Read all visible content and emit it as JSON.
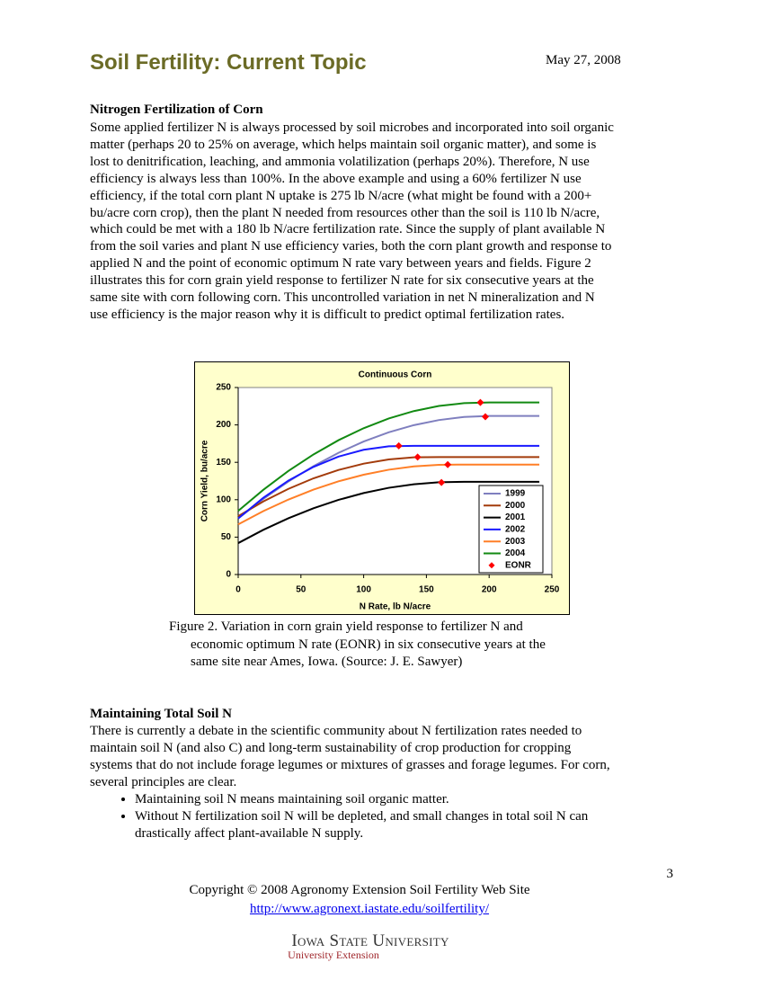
{
  "header": {
    "title": "Soil Fertility:  Current Topic",
    "date": "May 27, 2008"
  },
  "sections": [
    {
      "heading": "Nitrogen Fertilization of Corn",
      "lines": [
        "Some applied fertilizer N is always processed by soil microbes and incorporated into soil organic",
        "matter (perhaps 20 to 25% on average, which helps maintain soil organic matter), and some is",
        "lost to denitrification, leaching, and ammonia volatilization (perhaps 20%). Therefore, N use",
        "efficiency is always less than 100%. In the above example and using a 60% fertilizer N use",
        "efficiency, if the total corn plant N uptake is 275 lb N/acre (what might be found with a 200+",
        "bu/acre corn crop), then the plant N needed from resources other than the soil is 110 lb N/acre,",
        "which could be met with a 180 lb N/acre fertilization rate. Since the supply of plant available N",
        "from the soil varies and plant N use efficiency varies, both the corn plant growth and response to",
        "applied N and the point of economic optimum N rate vary between years and fields. Figure 2",
        "illustrates this for corn grain yield response to fertilizer N rate for six consecutive years at the",
        "same site with corn following corn. This uncontrolled variation in net N mineralization and N",
        "use efficiency is the major reason why it is difficult to predict optimal fertilization rates."
      ]
    },
    {
      "heading": "Maintaining Total Soil N",
      "lines": [
        "There is currently a debate in the scientific community about N fertilization rates needed to",
        "maintain soil N (and also C) and long-term sustainability of crop production for cropping",
        "systems that do not include forage legumes or mixtures of grasses and forage legumes. For corn,",
        "several principles are clear."
      ],
      "bullets": [
        [
          "Maintaining soil N means maintaining soil organic matter."
        ],
        [
          "Without N fertilization soil N will be depleted, and small changes in total soil N can",
          "drastically affect plant-available N supply."
        ]
      ]
    }
  ],
  "chart_data": {
    "type": "line",
    "title": "Continuous Corn",
    "x_label": "N Rate, lb N/acre",
    "y_label": "Corn Yield, bu/acre",
    "x": [
      0,
      20,
      40,
      60,
      80,
      100,
      120,
      140,
      160,
      180,
      200,
      220,
      240
    ],
    "xlim": [
      0,
      250
    ],
    "ylim": [
      0,
      250
    ],
    "xticks": [
      0,
      50,
      100,
      150,
      200,
      250
    ],
    "yticks": [
      0,
      50,
      100,
      150,
      200,
      250
    ],
    "background": "#ffffcc",
    "legend": "lower-right",
    "series": [
      {
        "name": "1999",
        "color": "#7f7fbf",
        "values": [
          75,
          101.0,
          124.3,
          144.9,
          162.7,
          177.8,
          190.1,
          199.7,
          206.5,
          210.6,
          212,
          212,
          212
        ]
      },
      {
        "name": "2000",
        "color": "#a33b0b",
        "values": [
          78,
          97.7,
          114.5,
          128.6,
          139.8,
          148.2,
          153.8,
          156.7,
          157,
          157,
          157,
          157,
          157
        ]
      },
      {
        "name": "2001",
        "color": "#000000",
        "values": [
          42,
          59.7,
          75.2,
          88.6,
          99.8,
          108.9,
          115.9,
          120.7,
          123.4,
          124,
          124,
          124,
          124
        ]
      },
      {
        "name": "2002",
        "color": "#1a1aff",
        "values": [
          75,
          102.5,
          125.5,
          143.9,
          157.7,
          166.8,
          171.4,
          172,
          172,
          172,
          172,
          172,
          172
        ]
      },
      {
        "name": "2003",
        "color": "#ff7f27",
        "values": [
          67,
          84.7,
          100.2,
          113.5,
          124.6,
          133.4,
          140.1,
          144.5,
          146.7,
          147,
          147,
          147,
          147
        ]
      },
      {
        "name": "2004",
        "color": "#128a12",
        "values": [
          85,
          113.2,
          138.4,
          160.5,
          179.6,
          195.6,
          208.6,
          218.5,
          225.3,
          229.1,
          230,
          230,
          230
        ]
      },
      {
        "name": "EONR",
        "color": "#ff0000",
        "marker": "diamond",
        "x": [
          197,
          143,
          162,
          128,
          167,
          193
        ],
        "values": [
          211,
          157,
          123,
          172,
          147,
          230
        ]
      }
    ]
  },
  "caption": {
    "lines": [
      "Figure 2. Variation in corn grain yield response to fertilizer N and",
      "economic optimum N rate (EONR) in six consecutive years at the",
      "same site near Ames, Iowa. (Source: J. E. Sawyer)"
    ]
  },
  "footer": {
    "page_number": "3",
    "copyright": "Copyright © 2008 Agronomy Extension Soil Fertility Web Site",
    "link": "http://www.agronext.iastate.edu/soilfertility/",
    "logo_name": "Iowa State University",
    "logo_sub": "University Extension"
  }
}
